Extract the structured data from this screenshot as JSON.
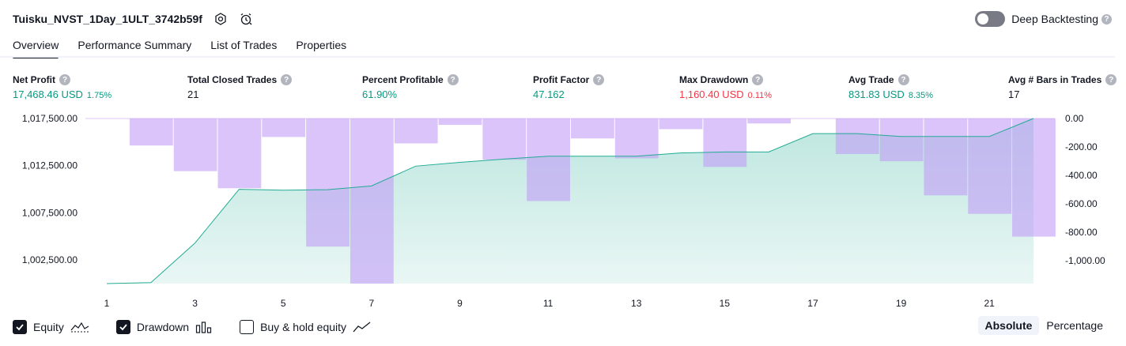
{
  "header": {
    "title": "Tuisku_NVST_1Day_1ULT_3742b59f",
    "deep_label": "Deep Backtesting",
    "help_glyph": "?"
  },
  "tabs": [
    {
      "label": "Overview"
    },
    {
      "label": "Performance Summary"
    },
    {
      "label": "List of Trades"
    },
    {
      "label": "Properties"
    }
  ],
  "metrics": {
    "net_profit": {
      "label": "Net Profit",
      "value": "17,468.46 USD",
      "pct": "1.75%"
    },
    "total_closed": {
      "label": "Total Closed Trades",
      "value": "21"
    },
    "percent_profitable": {
      "label": "Percent Profitable",
      "value": "61.90%"
    },
    "profit_factor": {
      "label": "Profit Factor",
      "value": "47.162"
    },
    "max_drawdown": {
      "label": "Max Drawdown",
      "value": "1,160.40 USD",
      "pct": "0.11%"
    },
    "avg_trade": {
      "label": "Avg Trade",
      "value": "831.83 USD",
      "pct": "8.35%"
    },
    "avg_bars": {
      "label": "Avg # Bars in Trades",
      "value": "17"
    }
  },
  "legend": {
    "equity": "Equity",
    "drawdown": "Drawdown",
    "buy_hold": "Buy & hold equity"
  },
  "mode": {
    "absolute": "Absolute",
    "percentage": "Percentage"
  },
  "colors": {
    "positive": "#089981",
    "negative": "#f23645",
    "equity_line": "#22ab94",
    "drawdown_bar": "#d1b3fb"
  },
  "chart_data": {
    "type": "area",
    "x": [
      1,
      2,
      3,
      4,
      5,
      6,
      7,
      8,
      9,
      10,
      11,
      12,
      13,
      14,
      15,
      16,
      17,
      18,
      19,
      20,
      21,
      22
    ],
    "x_tick_labels": [
      "1",
      "3",
      "5",
      "7",
      "9",
      "11",
      "13",
      "15",
      "17",
      "19",
      "21"
    ],
    "series": [
      {
        "name": "Equity",
        "axis": "left",
        "values": [
          1000000,
          1000100,
          1004300,
          1010000,
          1009900,
          1009950,
          1010350,
          1012450,
          1012850,
          1013200,
          1013500,
          1013500,
          1013500,
          1013850,
          1013950,
          1013950,
          1015900,
          1015900,
          1015600,
          1015600,
          1015600,
          1017500
        ]
      },
      {
        "name": "Drawdown",
        "axis": "right",
        "values": [
          0,
          -190,
          -370,
          -490,
          -130,
          -900,
          -1160,
          -175,
          -45,
          -290,
          -580,
          -140,
          -280,
          -75,
          -340,
          -35,
          0,
          -250,
          -300,
          -540,
          -670,
          -830
        ]
      }
    ],
    "y_left": {
      "ticks": [
        "1,017,500.00",
        "1,012,500.00",
        "1,007,500.00",
        "1,002,500.00"
      ],
      "range": [
        1000000,
        1017500
      ]
    },
    "y_right": {
      "ticks": [
        "0.00",
        "-200.00",
        "-400.00",
        "-600.00",
        "-800.00",
        "-1,000.00"
      ],
      "range": [
        -1160,
        0
      ]
    }
  }
}
